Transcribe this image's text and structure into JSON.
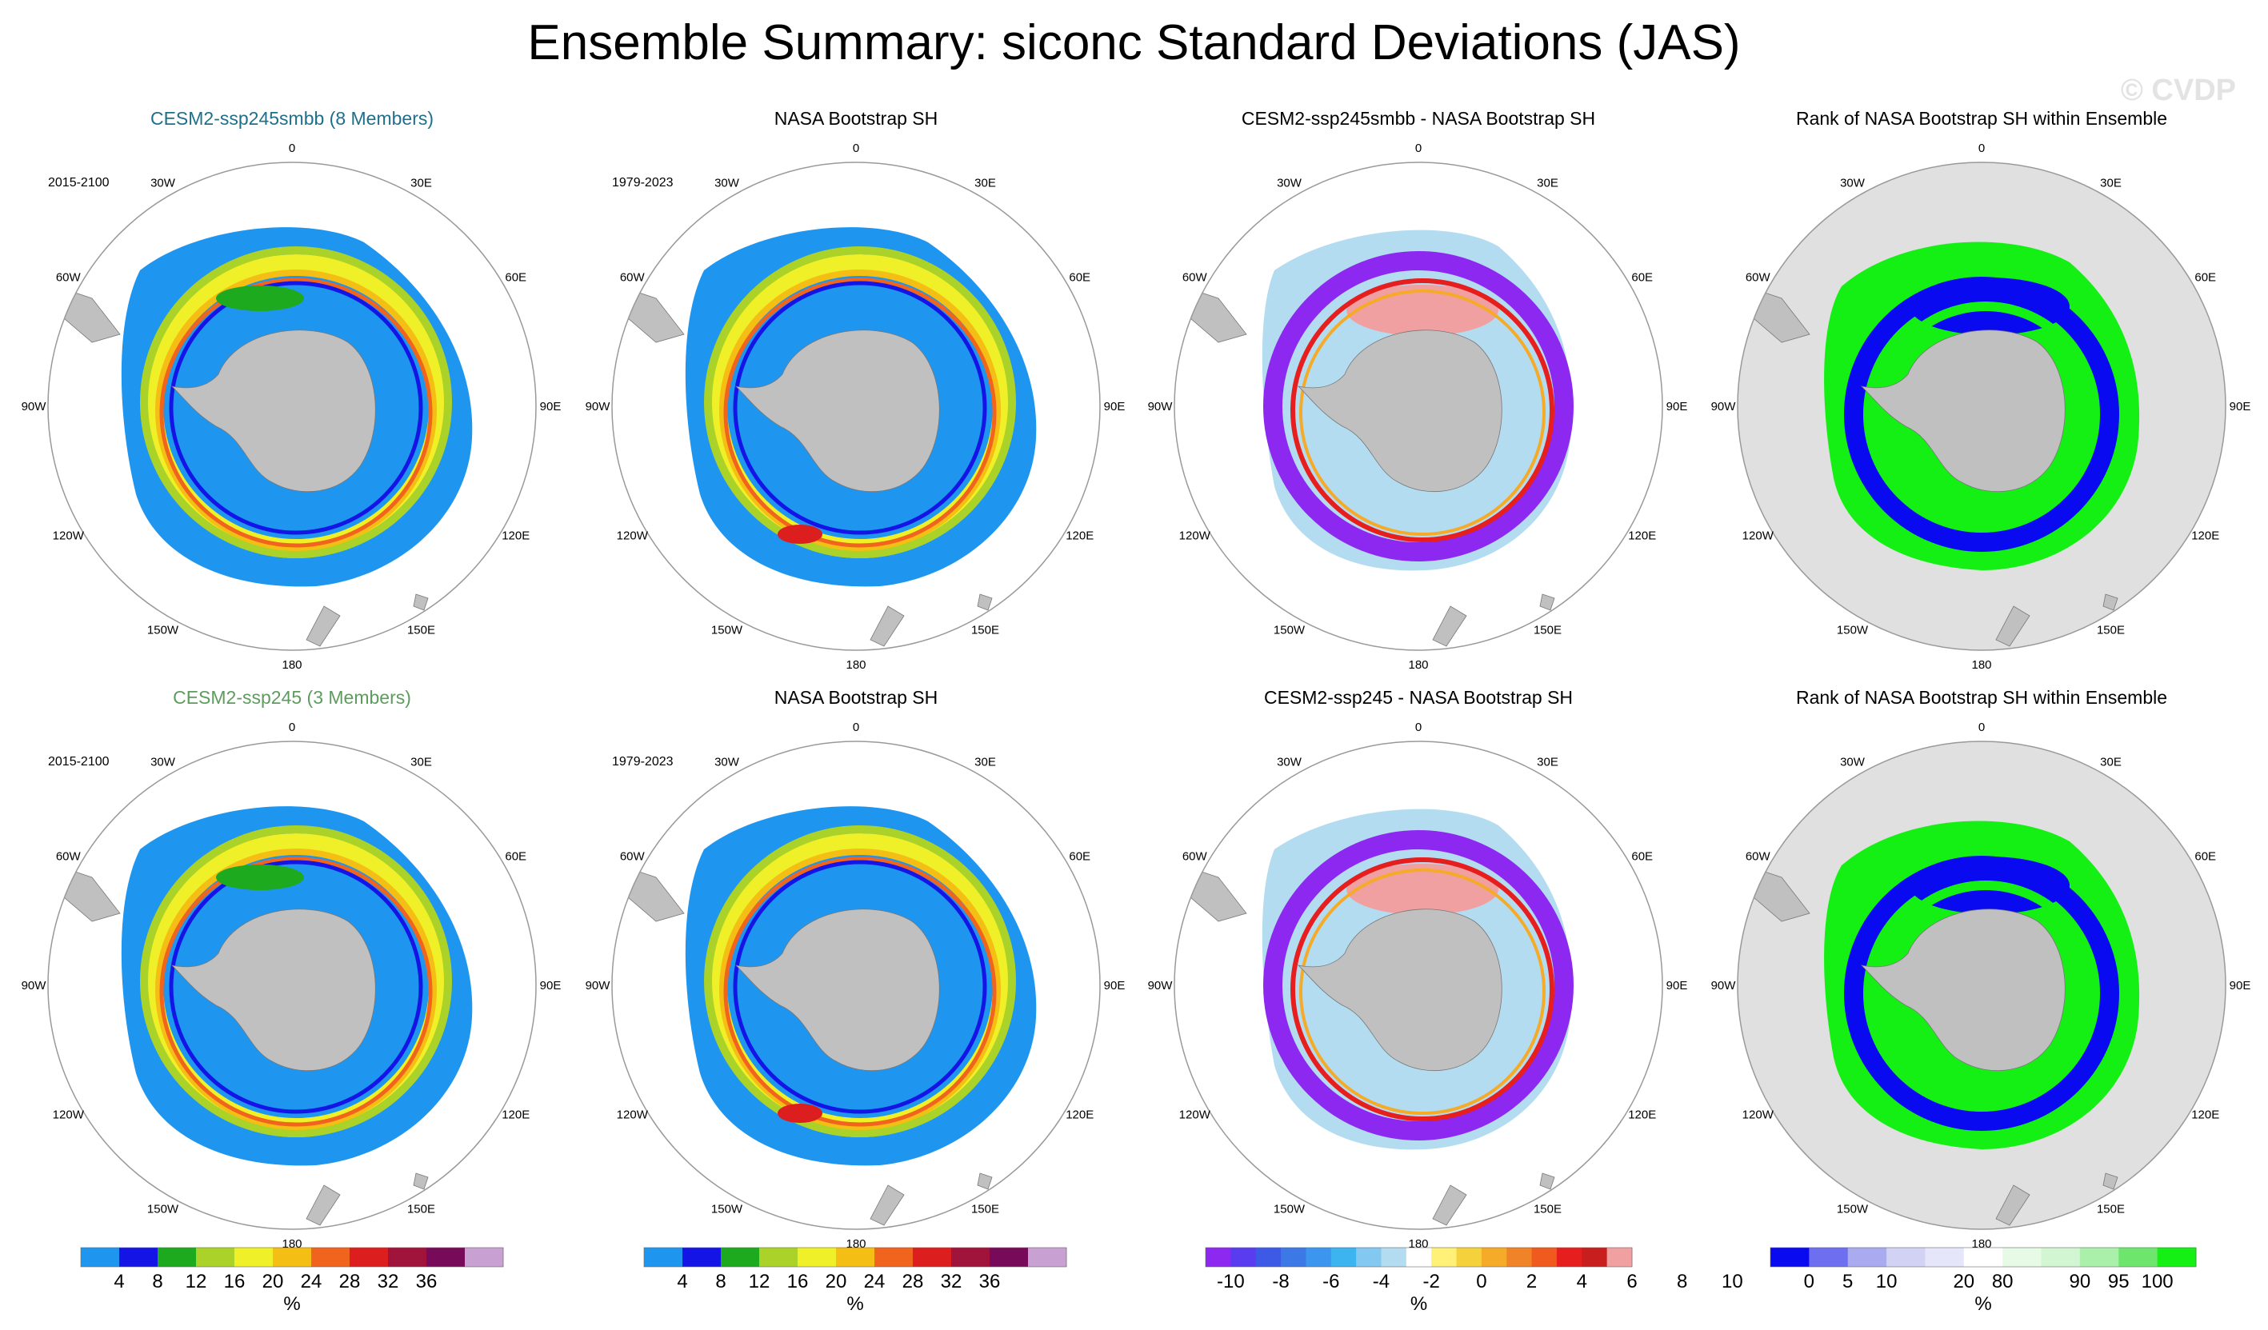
{
  "title": "Ensemble Summary: siconc Standard Deviations (JAS)",
  "watermark": "© CVDP",
  "colors": {
    "ocean_bg": "#ffffff",
    "land": "#c0c0c0",
    "rank_bg": "#e0e0e0",
    "circle": "#999999",
    "title_ssp245smbb": "#1f6f8b",
    "title_ssp245": "#5e9c5e"
  },
  "meridian_labels": [
    "0",
    "30E",
    "60E",
    "90E",
    "120E",
    "150E",
    "180",
    "150W",
    "120W",
    "90W",
    "60W",
    "30W"
  ],
  "rows": [
    {
      "panels": [
        {
          "kind": "model",
          "title": "CESM2-ssp245smbb (8 Members)",
          "title_color": "#1f6f8b",
          "period": "2015-2100"
        },
        {
          "kind": "obs",
          "title": "NASA Bootstrap SH",
          "period": "1979-2023"
        },
        {
          "kind": "diff",
          "title": "CESM2-ssp245smbb - NASA Bootstrap SH",
          "period": ""
        },
        {
          "kind": "rank",
          "title": "Rank of NASA Bootstrap SH within Ensemble",
          "period": ""
        }
      ]
    },
    {
      "panels": [
        {
          "kind": "model",
          "title": "CESM2-ssp245 (3 Members)",
          "title_color": "#5e9c5e",
          "period": "2015-2100"
        },
        {
          "kind": "obs",
          "title": "NASA Bootstrap SH",
          "period": "1979-2023"
        },
        {
          "kind": "diff",
          "title": "CESM2-ssp245 - NASA Bootstrap SH",
          "period": ""
        },
        {
          "kind": "rank",
          "title": "Rank of NASA Bootstrap SH within Ensemble",
          "period": ""
        }
      ]
    }
  ],
  "colorbars": [
    {
      "name": "std",
      "unit": "%",
      "colors": [
        "#1e96f0",
        "#1414e6",
        "#1eaa1e",
        "#aad228",
        "#f0f028",
        "#f5be14",
        "#f0641e",
        "#dc1e1e",
        "#a0143c",
        "#780a5a",
        "#c8a0d2"
      ],
      "labels": [
        "4",
        "8",
        "12",
        "16",
        "20",
        "24",
        "28",
        "32",
        "36"
      ]
    },
    {
      "name": "std",
      "unit": "%",
      "colors": [
        "#1e96f0",
        "#1414e6",
        "#1eaa1e",
        "#aad228",
        "#f0f028",
        "#f5be14",
        "#f0641e",
        "#dc1e1e",
        "#a0143c",
        "#780a5a",
        "#c8a0d2"
      ],
      "labels": [
        "4",
        "8",
        "12",
        "16",
        "20",
        "24",
        "28",
        "32",
        "36"
      ]
    },
    {
      "name": "diff",
      "unit": "%",
      "colors": [
        "#8c28f0",
        "#5a3cf0",
        "#3c5ae6",
        "#3c78e6",
        "#3c96f0",
        "#3cb4f0",
        "#82c8f0",
        "#b4dcf0",
        "#ffffff",
        "#fff078",
        "#f5d23c",
        "#f5aa28",
        "#f08228",
        "#f05a1e",
        "#e61e1e",
        "#c81e1e",
        "#f0a0a0"
      ],
      "labels": [
        "-10",
        "-8",
        "-6",
        "-4",
        "-2",
        "0",
        "2",
        "4",
        "6",
        "8",
        "10"
      ]
    },
    {
      "name": "rank",
      "unit": "%",
      "colors": [
        "#0a0af0",
        "#6e6ef0",
        "#aaaaf0",
        "#d2d2f5",
        "#e6e6fa",
        "#ffffff",
        "#e6fae6",
        "#d2f5d2",
        "#aaf0aa",
        "#6ee66e",
        "#14f014"
      ],
      "labels": [
        "0",
        "5",
        "10",
        "20",
        "80",
        "90",
        "95",
        "100"
      ]
    }
  ]
}
